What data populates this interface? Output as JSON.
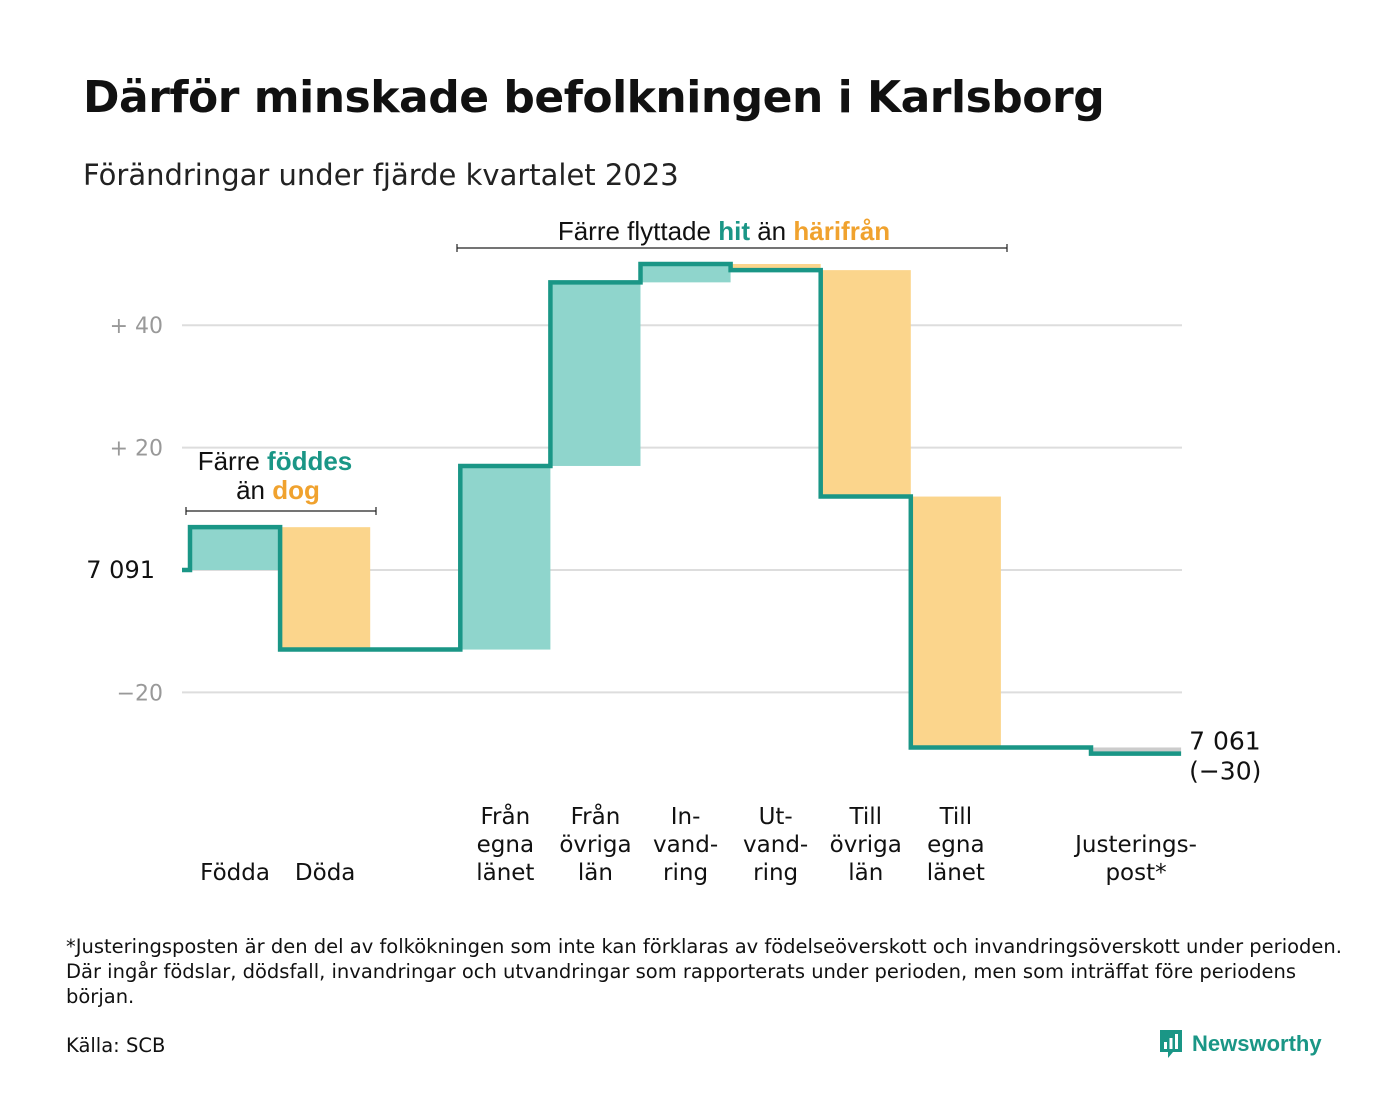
{
  "title": "Därför minskade befolkningen i Karlsborg",
  "subtitle": "Förändringar under fjärde kvartalet 2023",
  "chart_data": {
    "type": "waterfall",
    "start_value": 7091,
    "start_label": "7  091",
    "end_label_value": "7 061",
    "end_label_change": "(−30)",
    "ylim": [
      -30,
      50
    ],
    "yticks": [
      {
        "value": 40,
        "label": "+  40"
      },
      {
        "value": 20,
        "label": "+  20"
      },
      {
        "value": 0,
        "label": ""
      },
      {
        "value": -20,
        "label": "−20"
      }
    ],
    "steps": [
      {
        "key": "fodda",
        "label_lines": [
          "Födda"
        ],
        "change": 7,
        "kind": "in"
      },
      {
        "key": "doda",
        "label_lines": [
          "Döda"
        ],
        "change": -20,
        "kind": "out"
      },
      {
        "key": "gap",
        "label_lines": [],
        "change": 0,
        "kind": "none"
      },
      {
        "key": "fran_egna",
        "label_lines": [
          "Från",
          "egna",
          "länet"
        ],
        "change": 30,
        "kind": "in"
      },
      {
        "key": "fran_ovriga",
        "label_lines": [
          "Från",
          "övriga",
          "län"
        ],
        "change": 30,
        "kind": "in"
      },
      {
        "key": "invandring",
        "label_lines": [
          "In-",
          "vand-",
          "ring"
        ],
        "change": 3,
        "kind": "in"
      },
      {
        "key": "utvandring",
        "label_lines": [
          "Ut-",
          "vand-",
          "ring"
        ],
        "change": -1,
        "kind": "out"
      },
      {
        "key": "till_ovriga",
        "label_lines": [
          "Till",
          "övriga",
          "län"
        ],
        "change": -37,
        "kind": "out"
      },
      {
        "key": "till_egna",
        "label_lines": [
          "Till",
          "egna",
          "länet"
        ],
        "change": -41,
        "kind": "out"
      },
      {
        "key": "gap2",
        "label_lines": [],
        "change": 0,
        "kind": "none"
      },
      {
        "key": "justering",
        "label_lines": [
          "Justerings-",
          "post*"
        ],
        "change": -1,
        "kind": "adj"
      }
    ],
    "annotations": [
      {
        "key": "births",
        "line1": [
          "Färre ",
          "föddes"
        ],
        "line2": [
          "än ",
          "dog"
        ]
      },
      {
        "key": "moves",
        "parts": [
          "Färre flyttade ",
          "hit",
          " än ",
          "härifrån"
        ]
      }
    ],
    "colors": {
      "in": "#8fd5cc",
      "out": "#fbd58c",
      "adj": "#cccccc",
      "line": "#1a9686",
      "teal_text": "#1a9686",
      "orange_text": "#f0a22e",
      "grid": "#dddddd",
      "tick": "#999999"
    }
  },
  "footnote": "*Justeringsposten är den del av folkökningen som inte kan förklaras av födelseöverskott och invandringsöverskott under perioden. Där ingår födslar, dödsfall, invandringar och utvandringar som rapporterats under perioden, men som inträffat före periodens början.",
  "source": "Källa: SCB",
  "brand": "Newsworthy"
}
